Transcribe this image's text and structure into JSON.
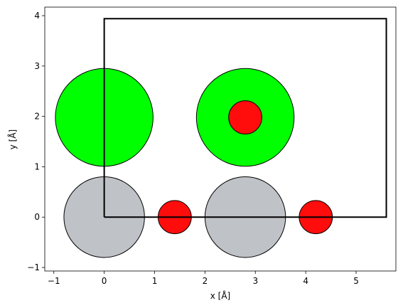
{
  "chart_data": {
    "type": "atoms",
    "xlabel": "x [Å]",
    "ylabel": "y [Å]",
    "xlim": [
      -1.18,
      5.79
    ],
    "ylim": [
      -1.07,
      4.17
    ],
    "xticks": [
      {
        "value": -1,
        "label": "−1"
      },
      0,
      1,
      2,
      3,
      4,
      5
    ],
    "yticks": [
      {
        "value": -1,
        "label": "−1"
      },
      0,
      1,
      2,
      3,
      4
    ],
    "x": [
      0,
      1.4,
      2.8,
      4.2,
      0,
      2.8,
      2.8
    ],
    "y": [
      0,
      0,
      0,
      0,
      1.98,
      1.98,
      1.98
    ],
    "radii": [
      0.8,
      0.33,
      0.8,
      0.33,
      0.97,
      0.97,
      0.33
    ],
    "colors": [
      "#bfc2c7",
      "#ff0d0d",
      "#bfc2c7",
      "#ff0d0d",
      "#00ff00",
      "#00ff00",
      "#ff0d0d"
    ],
    "cell": {
      "x": [
        0,
        5.6,
        5.6,
        0,
        0
      ],
      "y": [
        0,
        0,
        3.94,
        3.94,
        0
      ]
    }
  }
}
